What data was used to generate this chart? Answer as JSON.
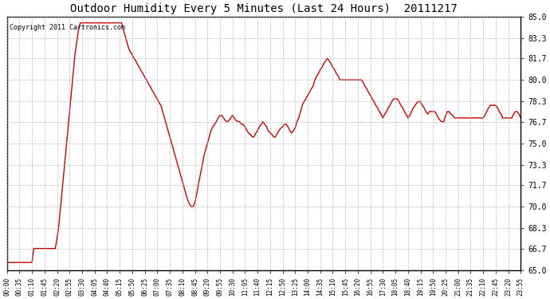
{
  "title": "Outdoor Humidity Every 5 Minutes (Last 24 Hours)  20111217",
  "copyright": "Copyright 2011 Cartronics.com",
  "line_color": "#cc0000",
  "bg_color": "#ffffff",
  "grid_color": "#aaaaaa",
  "ylim": [
    65.0,
    85.0
  ],
  "yticks": [
    65.0,
    66.7,
    68.3,
    70.0,
    71.7,
    73.3,
    75.0,
    76.7,
    78.3,
    80.0,
    81.7,
    83.3,
    85.0
  ],
  "ytick_labels": [
    "65.0",
    "66.7",
    "68.3",
    "70.0",
    "71.7",
    "73.3",
    "75.0",
    "76.7",
    "78.3",
    "80.0",
    "81.7",
    "83.3",
    "85.0"
  ],
  "x_labels": [
    "00:00",
    "00:35",
    "01:10",
    "01:45",
    "02:20",
    "02:55",
    "03:30",
    "04:05",
    "04:40",
    "05:15",
    "05:50",
    "06:25",
    "07:00",
    "07:35",
    "08:10",
    "08:45",
    "09:20",
    "09:55",
    "10:30",
    "11:05",
    "11:40",
    "12:15",
    "12:50",
    "13:25",
    "14:00",
    "14:35",
    "15:10",
    "15:45",
    "16:20",
    "16:55",
    "17:30",
    "18:05",
    "18:40",
    "19:15",
    "19:50",
    "20:25",
    "21:00",
    "21:35",
    "22:10",
    "22:45",
    "23:20",
    "23:55"
  ],
  "humidity_data": [
    [
      0,
      65.6
    ],
    [
      1,
      65.6
    ],
    [
      2,
      65.6
    ],
    [
      3,
      65.6
    ],
    [
      4,
      65.6
    ],
    [
      5,
      65.6
    ],
    [
      6,
      65.6
    ],
    [
      7,
      65.6
    ],
    [
      8,
      65.6
    ],
    [
      9,
      65.6
    ],
    [
      10,
      65.6
    ],
    [
      11,
      65.6
    ],
    [
      12,
      65.6
    ],
    [
      13,
      65.6
    ],
    [
      14,
      65.6
    ],
    [
      15,
      66.7
    ],
    [
      16,
      66.7
    ],
    [
      17,
      66.7
    ],
    [
      18,
      66.7
    ],
    [
      19,
      66.7
    ],
    [
      20,
      66.7
    ],
    [
      21,
      66.7
    ],
    [
      22,
      66.7
    ],
    [
      23,
      66.7
    ],
    [
      24,
      66.7
    ],
    [
      25,
      66.7
    ],
    [
      26,
      66.7
    ],
    [
      27,
      66.7
    ],
    [
      28,
      67.5
    ],
    [
      29,
      68.5
    ],
    [
      30,
      70.0
    ],
    [
      31,
      71.5
    ],
    [
      32,
      73.0
    ],
    [
      33,
      74.5
    ],
    [
      34,
      76.0
    ],
    [
      35,
      77.5
    ],
    [
      36,
      79.0
    ],
    [
      37,
      80.5
    ],
    [
      38,
      82.0
    ],
    [
      39,
      83.0
    ],
    [
      40,
      84.0
    ],
    [
      41,
      84.5
    ],
    [
      42,
      84.5
    ],
    [
      43,
      84.5
    ],
    [
      44,
      84.5
    ],
    [
      45,
      84.5
    ],
    [
      46,
      84.5
    ],
    [
      47,
      84.5
    ],
    [
      48,
      84.5
    ],
    [
      49,
      84.5
    ],
    [
      50,
      84.5
    ],
    [
      51,
      84.5
    ],
    [
      52,
      84.5
    ],
    [
      53,
      84.5
    ],
    [
      54,
      84.5
    ],
    [
      55,
      84.5
    ],
    [
      56,
      84.5
    ],
    [
      57,
      84.5
    ],
    [
      58,
      84.5
    ],
    [
      59,
      84.5
    ],
    [
      60,
      84.5
    ],
    [
      61,
      84.5
    ],
    [
      62,
      84.5
    ],
    [
      63,
      84.5
    ],
    [
      64,
      84.5
    ],
    [
      65,
      84.0
    ],
    [
      66,
      83.5
    ],
    [
      67,
      83.0
    ],
    [
      68,
      82.5
    ],
    [
      69,
      82.2
    ],
    [
      70,
      82.0
    ],
    [
      71,
      81.7
    ],
    [
      72,
      81.5
    ],
    [
      73,
      81.2
    ],
    [
      74,
      81.0
    ],
    [
      75,
      80.7
    ],
    [
      76,
      80.5
    ],
    [
      77,
      80.2
    ],
    [
      78,
      80.0
    ],
    [
      79,
      79.7
    ],
    [
      80,
      79.5
    ],
    [
      81,
      79.2
    ],
    [
      82,
      79.0
    ],
    [
      83,
      78.7
    ],
    [
      84,
      78.5
    ],
    [
      85,
      78.2
    ],
    [
      86,
      78.0
    ],
    [
      87,
      77.5
    ],
    [
      88,
      77.0
    ],
    [
      89,
      76.5
    ],
    [
      90,
      76.0
    ],
    [
      91,
      75.5
    ],
    [
      92,
      75.0
    ],
    [
      93,
      74.5
    ],
    [
      94,
      74.0
    ],
    [
      95,
      73.5
    ],
    [
      96,
      73.0
    ],
    [
      97,
      72.5
    ],
    [
      98,
      72.0
    ],
    [
      99,
      71.5
    ],
    [
      100,
      71.0
    ],
    [
      101,
      70.5
    ],
    [
      102,
      70.2
    ],
    [
      103,
      70.0
    ],
    [
      104,
      70.0
    ],
    [
      105,
      70.3
    ],
    [
      106,
      71.0
    ],
    [
      107,
      71.8
    ],
    [
      108,
      72.5
    ],
    [
      109,
      73.2
    ],
    [
      110,
      74.0
    ],
    [
      111,
      74.5
    ],
    [
      112,
      75.0
    ],
    [
      113,
      75.5
    ],
    [
      114,
      76.0
    ],
    [
      115,
      76.3
    ],
    [
      116,
      76.5
    ],
    [
      117,
      76.7
    ],
    [
      118,
      77.0
    ],
    [
      119,
      77.2
    ],
    [
      120,
      77.2
    ],
    [
      121,
      77.0
    ],
    [
      122,
      76.8
    ],
    [
      123,
      76.7
    ],
    [
      124,
      76.8
    ],
    [
      125,
      77.0
    ],
    [
      126,
      77.2
    ],
    [
      127,
      77.0
    ],
    [
      128,
      76.8
    ],
    [
      129,
      76.7
    ],
    [
      130,
      76.7
    ],
    [
      131,
      76.5
    ],
    [
      132,
      76.5
    ],
    [
      133,
      76.3
    ],
    [
      134,
      76.0
    ],
    [
      135,
      75.8
    ],
    [
      136,
      75.7
    ],
    [
      137,
      75.5
    ],
    [
      138,
      75.5
    ],
    [
      139,
      75.8
    ],
    [
      140,
      76.0
    ],
    [
      141,
      76.3
    ],
    [
      142,
      76.5
    ],
    [
      143,
      76.7
    ],
    [
      144,
      76.5
    ],
    [
      145,
      76.3
    ],
    [
      146,
      76.0
    ],
    [
      147,
      75.8
    ],
    [
      148,
      75.7
    ],
    [
      149,
      75.5
    ],
    [
      150,
      75.5
    ],
    [
      151,
      75.8
    ],
    [
      152,
      76.0
    ],
    [
      153,
      76.2
    ],
    [
      154,
      76.3
    ],
    [
      155,
      76.5
    ],
    [
      156,
      76.5
    ],
    [
      157,
      76.3
    ],
    [
      158,
      76.0
    ],
    [
      159,
      75.8
    ],
    [
      160,
      76.0
    ],
    [
      161,
      76.2
    ],
    [
      162,
      76.7
    ],
    [
      163,
      77.0
    ],
    [
      164,
      77.5
    ],
    [
      165,
      78.0
    ],
    [
      166,
      78.3
    ],
    [
      167,
      78.5
    ],
    [
      168,
      78.8
    ],
    [
      169,
      79.0
    ],
    [
      170,
      79.3
    ],
    [
      171,
      79.5
    ],
    [
      172,
      80.0
    ],
    [
      173,
      80.3
    ],
    [
      174,
      80.5
    ],
    [
      175,
      80.8
    ],
    [
      176,
      81.0
    ],
    [
      177,
      81.3
    ],
    [
      178,
      81.5
    ],
    [
      179,
      81.7
    ],
    [
      180,
      81.5
    ],
    [
      181,
      81.3
    ],
    [
      182,
      81.0
    ],
    [
      183,
      80.8
    ],
    [
      184,
      80.5
    ],
    [
      185,
      80.3
    ],
    [
      186,
      80.0
    ],
    [
      187,
      80.0
    ],
    [
      188,
      80.0
    ],
    [
      189,
      80.0
    ],
    [
      190,
      80.0
    ],
    [
      191,
      80.0
    ],
    [
      192,
      80.0
    ],
    [
      193,
      80.0
    ],
    [
      194,
      80.0
    ],
    [
      195,
      80.0
    ],
    [
      196,
      80.0
    ],
    [
      197,
      80.0
    ],
    [
      198,
      80.0
    ],
    [
      199,
      79.8
    ],
    [
      200,
      79.5
    ],
    [
      201,
      79.3
    ],
    [
      202,
      79.0
    ],
    [
      203,
      78.8
    ],
    [
      204,
      78.5
    ],
    [
      205,
      78.3
    ],
    [
      206,
      78.0
    ],
    [
      207,
      77.8
    ],
    [
      208,
      77.5
    ],
    [
      209,
      77.3
    ],
    [
      210,
      77.0
    ],
    [
      211,
      77.3
    ],
    [
      212,
      77.5
    ],
    [
      213,
      77.8
    ],
    [
      214,
      78.0
    ],
    [
      215,
      78.3
    ],
    [
      216,
      78.5
    ],
    [
      217,
      78.5
    ],
    [
      218,
      78.5
    ],
    [
      219,
      78.3
    ],
    [
      220,
      78.0
    ],
    [
      221,
      77.8
    ],
    [
      222,
      77.5
    ],
    [
      223,
      77.3
    ],
    [
      224,
      77.0
    ],
    [
      225,
      77.2
    ],
    [
      226,
      77.5
    ],
    [
      227,
      77.8
    ],
    [
      228,
      78.0
    ],
    [
      229,
      78.2
    ],
    [
      230,
      78.3
    ],
    [
      231,
      78.3
    ],
    [
      232,
      78.0
    ],
    [
      233,
      77.8
    ],
    [
      234,
      77.5
    ],
    [
      235,
      77.3
    ],
    [
      236,
      77.5
    ],
    [
      237,
      77.5
    ],
    [
      238,
      77.5
    ],
    [
      239,
      77.5
    ],
    [
      240,
      77.3
    ],
    [
      241,
      77.0
    ],
    [
      242,
      76.8
    ],
    [
      243,
      76.7
    ],
    [
      244,
      76.7
    ],
    [
      245,
      77.2
    ],
    [
      246,
      77.5
    ],
    [
      247,
      77.5
    ],
    [
      248,
      77.3
    ],
    [
      249,
      77.2
    ],
    [
      250,
      77.0
    ],
    [
      251,
      77.0
    ],
    [
      252,
      77.0
    ],
    [
      253,
      77.0
    ],
    [
      254,
      77.0
    ],
    [
      255,
      77.0
    ],
    [
      256,
      77.0
    ],
    [
      257,
      77.0
    ],
    [
      258,
      77.0
    ],
    [
      259,
      77.0
    ],
    [
      260,
      77.0
    ],
    [
      261,
      77.0
    ],
    [
      262,
      77.0
    ],
    [
      263,
      77.0
    ],
    [
      264,
      77.0
    ],
    [
      265,
      77.0
    ],
    [
      266,
      77.0
    ],
    [
      267,
      77.2
    ],
    [
      268,
      77.5
    ],
    [
      269,
      77.8
    ],
    [
      270,
      78.0
    ],
    [
      271,
      78.0
    ],
    [
      272,
      78.0
    ],
    [
      273,
      78.0
    ],
    [
      274,
      77.8
    ],
    [
      275,
      77.5
    ],
    [
      276,
      77.3
    ],
    [
      277,
      77.0
    ],
    [
      278,
      77.0
    ],
    [
      279,
      77.0
    ],
    [
      280,
      77.0
    ],
    [
      281,
      77.0
    ],
    [
      282,
      77.0
    ],
    [
      283,
      77.3
    ],
    [
      284,
      77.5
    ],
    [
      285,
      77.5
    ],
    [
      286,
      77.3
    ],
    [
      287,
      77.0
    ]
  ]
}
